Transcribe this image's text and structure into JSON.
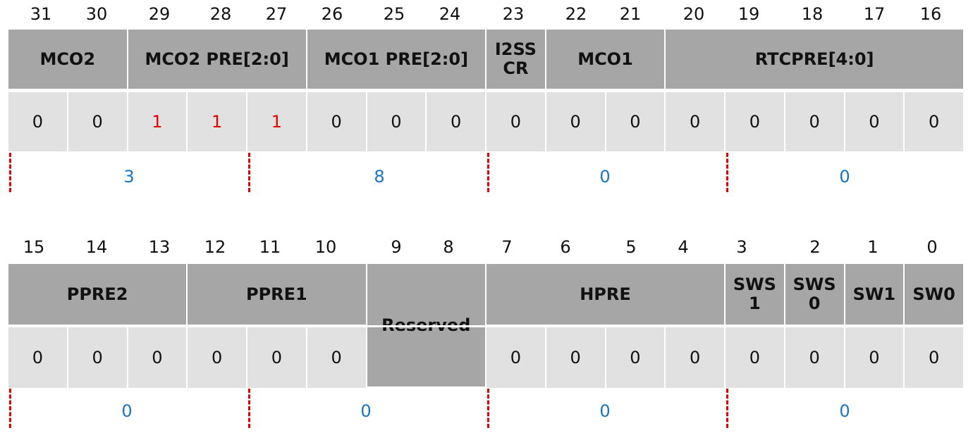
{
  "upper": {
    "bit_numbers": [
      "31",
      "30",
      "29",
      "28",
      "27",
      "26",
      "25",
      "24",
      "23",
      "22",
      "21",
      "20",
      "19",
      "18",
      "17",
      "16"
    ],
    "fields": [
      {
        "id": "mco2",
        "label": "MCO2"
      },
      {
        "id": "mco2-pre",
        "label": "MCO2  PRE[2:0]"
      },
      {
        "id": "mco1-pre",
        "label": "MCO1  PRE[2:0]"
      },
      {
        "id": "i2sscr",
        "label": "I2SS\nCR"
      },
      {
        "id": "mco1",
        "label": "MCO1"
      },
      {
        "id": "rtcpre",
        "label": "RTCPRE[4:0]"
      }
    ],
    "values": [
      "0",
      "0",
      "1",
      "1",
      "1",
      "0",
      "0",
      "0",
      "0",
      "0",
      "0",
      "0",
      "0",
      "0",
      "0",
      "0"
    ],
    "highlighted": [
      2,
      3,
      4
    ],
    "nibble_values": [
      "3",
      "8",
      "0",
      "0"
    ]
  },
  "lower": {
    "bit_numbers": [
      "15",
      "14",
      "13",
      "12",
      "11",
      "10",
      "9",
      "8",
      "7",
      "6",
      "5",
      "4",
      "3",
      "2",
      "1",
      "0"
    ],
    "fields": [
      {
        "id": "ppre2",
        "label": "PPRE2"
      },
      {
        "id": "ppre1",
        "label": "PPRE1"
      },
      {
        "id": "reserved",
        "label": "Reserved"
      },
      {
        "id": "hpre",
        "label": "HPRE"
      },
      {
        "id": "sws1",
        "label": "SWS\n1"
      },
      {
        "id": "sws0",
        "label": "SWS\n0"
      },
      {
        "id": "sw1",
        "label": "SW1"
      },
      {
        "id": "sw0",
        "label": "SW0"
      }
    ],
    "values": [
      "0",
      "0",
      "0",
      "0",
      "0",
      "0",
      "",
      "",
      "0",
      "0",
      "0",
      "0",
      "0",
      "0",
      "0",
      "0"
    ],
    "nibble_values": [
      "0",
      "0",
      "0",
      "0"
    ]
  },
  "colors": {
    "header_fill": "#a6a6a6",
    "value_fill": "#e1e1e1",
    "set_bit": "#e00000",
    "nibble_text": "#1a73c4",
    "divider_dash": "#e00000"
  }
}
